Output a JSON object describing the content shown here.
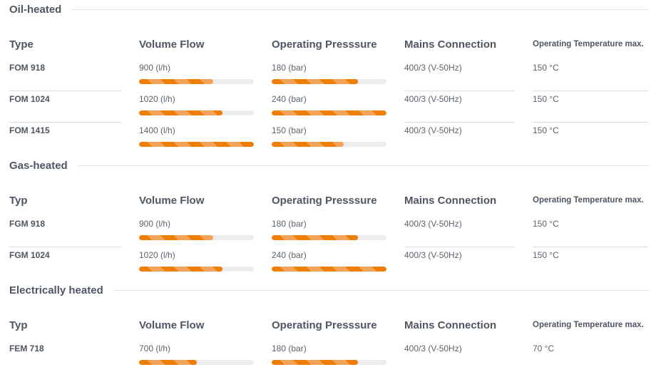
{
  "page": {
    "background": "#ffffff"
  },
  "colors": {
    "heading_text": "#4e5761",
    "value_text": "#5b636b",
    "bar_fill_dark": "#ee7e03",
    "bar_fill_light": "#f3a357",
    "bar_track": "#ececec",
    "separator_line": "#dcdcdc",
    "title_rule": "#e5e5e5"
  },
  "chart_data": {
    "type": "bar",
    "note": "horizontal striped progress bars per row; volume flow normalized to 1400 l/h, pressure normalized to 240 bar",
    "bar_scale": {
      "volume_flow_max": 1400,
      "pressure_max": 240
    }
  },
  "sections": [
    {
      "title": "Oil-heated",
      "columns": {
        "type": "Type",
        "volume_flow": "Volume Flow",
        "pressure": "Operating Presssure",
        "mains": "Mains Connection",
        "temp": "Operating Temperature max."
      },
      "rows": [
        {
          "type": "FOM 918",
          "volume_flow": "900 (l/h)",
          "volume_flow_pct": 64.3,
          "pressure": "180 (bar)",
          "pressure_pct": 75,
          "mains": "400/3 (V-50Hz)",
          "temp": "150 °C"
        },
        {
          "type": "FOM 1024",
          "volume_flow": "1020 (l/h)",
          "volume_flow_pct": 72.9,
          "pressure": "240 (bar)",
          "pressure_pct": 100,
          "mains": "400/3 (V-50Hz)",
          "temp": "150 °C"
        },
        {
          "type": "FOM 1415",
          "volume_flow": "1400 (l/h)",
          "volume_flow_pct": 100,
          "pressure": "150 (bar)",
          "pressure_pct": 62.5,
          "mains": "400/3 (V-50Hz)",
          "temp": "150 °C"
        }
      ]
    },
    {
      "title": "Gas-heated",
      "columns": {
        "type": "Typ",
        "volume_flow": "Volume Flow",
        "pressure": "Operating Presssure",
        "mains": "Mains Connection",
        "temp": "Operating Temperature max."
      },
      "rows": [
        {
          "type": "FGM 918",
          "volume_flow": "900 (l/h)",
          "volume_flow_pct": 64.3,
          "pressure": "180 (bar)",
          "pressure_pct": 75,
          "mains": "400/3 (V-50Hz)",
          "temp": "150 °C"
        },
        {
          "type": "FGM 1024",
          "volume_flow": "1020 (l/h)",
          "volume_flow_pct": 72.9,
          "pressure": "240 (bar)",
          "pressure_pct": 100,
          "mains": "400/3 (V-50Hz)",
          "temp": "150 °C"
        }
      ]
    },
    {
      "title": "Electrically heated",
      "columns": {
        "type": "Typ",
        "volume_flow": "Volume Flow",
        "pressure": "Operating Presssure",
        "mains": "Mains Connection",
        "temp": "Operating Temperature max."
      },
      "rows": [
        {
          "type": "FEM 718",
          "volume_flow": "700 (l/h)",
          "volume_flow_pct": 50,
          "pressure": "180 (bar)",
          "pressure_pct": 75,
          "mains": "400/3 (V-50Hz)",
          "temp": "70 °C"
        }
      ]
    }
  ]
}
